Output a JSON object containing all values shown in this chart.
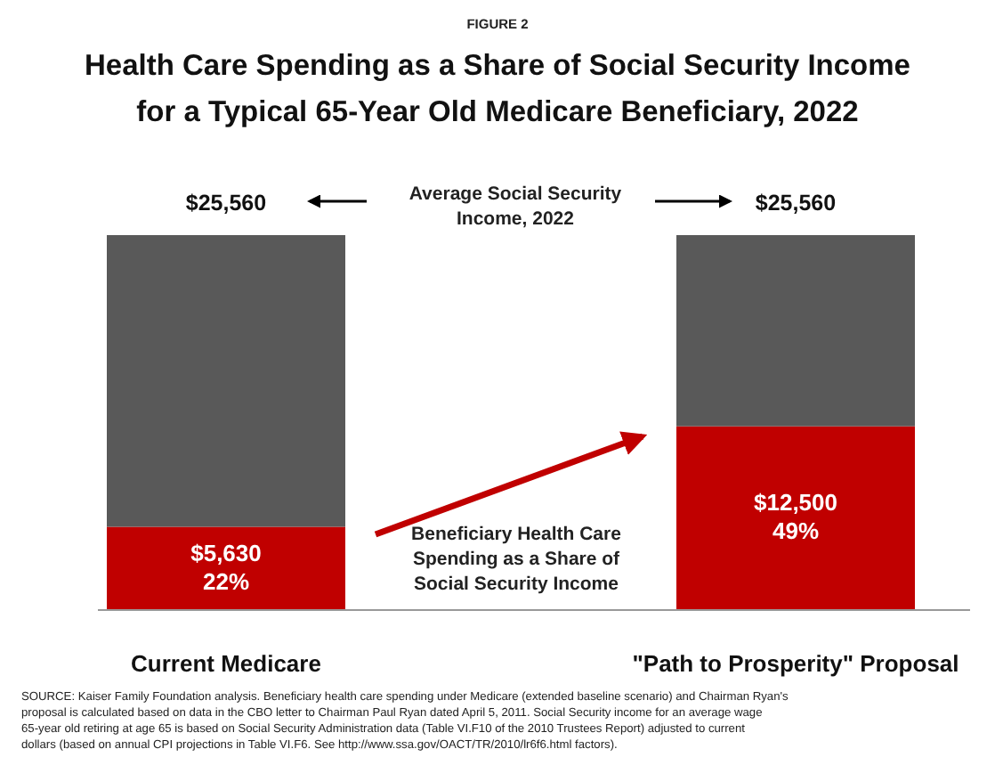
{
  "chart_data": {
    "type": "bar",
    "subtitle": "FIGURE 2",
    "title": "Health Care Spending as a Share of Social Security Income for a Typical 65-Year Old Medicare Beneficiary, 2022",
    "categories": [
      "Current Medicare",
      "\"Path to Prosperity\" Proposal"
    ],
    "stacked": true,
    "series": [
      {
        "color": "#c00000",
        "values": [
          5630,
          12500
        ],
        "value_labels": [
          "$5,630\n22%",
          "$12,500\n49%"
        ]
      },
      {
        "color": "#595959",
        "values": [
          19930,
          13060
        ]
      }
    ],
    "totals": [
      "$25,560",
      "$25,560"
    ],
    "annotations": [
      "Average Social Security Income, 2022",
      "Beneficiary Health Care Spending as a Share of Social Security Income",
      "SOURCE:  Kaiser Family Foundation analysis.  Beneficiary health care spending under Medicare (extended baseline scenario) and Chairman Ryan's proposal is calculated based on data in the CBO letter to Chairman Paul Ryan dated April 5, 2011.  Social Security income for an average wage 65-year old retiring at age 65 is based on Social Security Administration data (Table VI.F10 of the 2010 Trustees  Report) adjusted to current dollars (based on annual CPI projections in Table VI.F6.  See http://www.ssa.gov/OACT/TR/2010/lr6f6.html factors)."
    ]
  }
}
